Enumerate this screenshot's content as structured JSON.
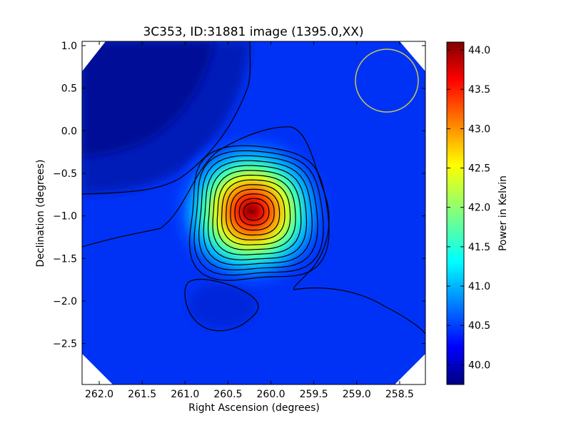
{
  "chart_data": {
    "type": "heatmap",
    "title": "3C353, ID:31881 image (1395.0,XX)",
    "xlabel": "Right Ascension (degrees)",
    "ylabel": "Declination (degrees)",
    "xlim": [
      262.2,
      258.2
    ],
    "ylim": [
      -2.98,
      1.05
    ],
    "x_ticks": [
      "262.0",
      "261.5",
      "261.0",
      "260.5",
      "260.0",
      "259.5",
      "259.0",
      "258.5"
    ],
    "x_tick_values": [
      262.0,
      261.5,
      261.0,
      260.5,
      260.0,
      259.5,
      259.0,
      258.5
    ],
    "y_ticks": [
      "1.0",
      "0.5",
      "0.0",
      "−0.5",
      "−1.0",
      "−1.5",
      "−2.0",
      "−2.5"
    ],
    "y_tick_values": [
      1.0,
      0.5,
      0.0,
      -0.5,
      -1.0,
      -1.5,
      -2.0,
      -2.5
    ],
    "source_peak": {
      "ra": 260.2,
      "dec": -0.95,
      "value": 44.05
    },
    "background_level": 40.1,
    "colormap": "jet",
    "grid": false,
    "beam_circle": {
      "ra": 258.62,
      "dec": 0.58,
      "radius_deg": 0.37,
      "color": "#c8c850"
    },
    "colorbar": {
      "label": "Power in Kelvin",
      "range": [
        39.75,
        44.1
      ],
      "ticks": [
        "40.0",
        "40.5",
        "41.0",
        "41.5",
        "42.0",
        "42.5",
        "43.0",
        "43.5",
        "44.0"
      ],
      "tick_values": [
        40.0,
        40.5,
        41.0,
        41.5,
        42.0,
        42.5,
        43.0,
        43.5,
        44.0
      ]
    }
  }
}
